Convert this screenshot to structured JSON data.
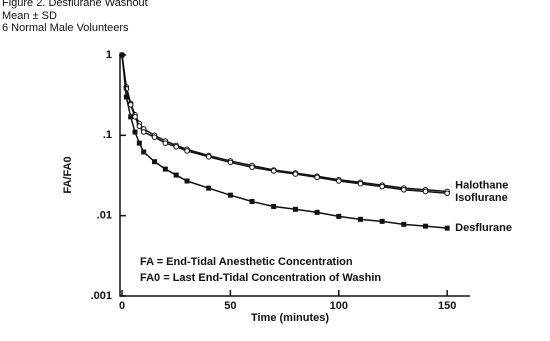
{
  "chart_data": {
    "type": "line",
    "title": "Figure 2. Desflurane Washout",
    "subtitle": "Mean ± SD",
    "note": "6 Normal Male Volunteers",
    "y_label": "FA/FA0",
    "x_label": "Time (minutes)",
    "annotations": [
      "FA = End-Tidal Anesthetic Concentration",
      "FA0 = Last End-Tidal Concentration of Washin"
    ],
    "log_y": true,
    "x": [
      0,
      2,
      4,
      6,
      8,
      10,
      15,
      20,
      25,
      30,
      40,
      50,
      60,
      70,
      80,
      90,
      100,
      110,
      120,
      130,
      140,
      150
    ],
    "series": [
      {
        "name": "Halothane",
        "color": "#111111",
        "marker": "circle-open",
        "values": [
          1,
          0.4,
          0.25,
          0.18,
          0.14,
          0.12,
          0.1,
          0.085,
          0.075,
          0.067,
          0.056,
          0.048,
          0.042,
          0.037,
          0.034,
          0.031,
          0.028,
          0.026,
          0.024,
          0.022,
          0.021,
          0.02
        ]
      },
      {
        "name": "Isoflurane",
        "color": "#111111",
        "marker": "circle-open",
        "values": [
          1,
          0.38,
          0.24,
          0.17,
          0.13,
          0.11,
          0.095,
          0.08,
          0.072,
          0.064,
          0.054,
          0.046,
          0.04,
          0.036,
          0.033,
          0.03,
          0.027,
          0.025,
          0.023,
          0.021,
          0.02,
          0.019
        ]
      },
      {
        "name": "Desflurane",
        "color": "#111111",
        "marker": "square",
        "values": [
          1,
          0.3,
          0.17,
          0.11,
          0.08,
          0.062,
          0.047,
          0.038,
          0.032,
          0.027,
          0.022,
          0.018,
          0.015,
          0.013,
          0.012,
          0.011,
          0.0098,
          0.009,
          0.0085,
          0.0078,
          0.0074,
          0.007
        ]
      }
    ],
    "xlim": [
      0,
      155
    ],
    "xticks": [
      0,
      50,
      100,
      150
    ],
    "ylim": [
      0.001,
      1
    ],
    "yticks": [
      1,
      {
        "value": 0.1,
        "label": ".1"
      },
      {
        "value": 0.01,
        "label": ".01"
      },
      {
        "value": 0.001,
        "label": ".001"
      }
    ]
  }
}
